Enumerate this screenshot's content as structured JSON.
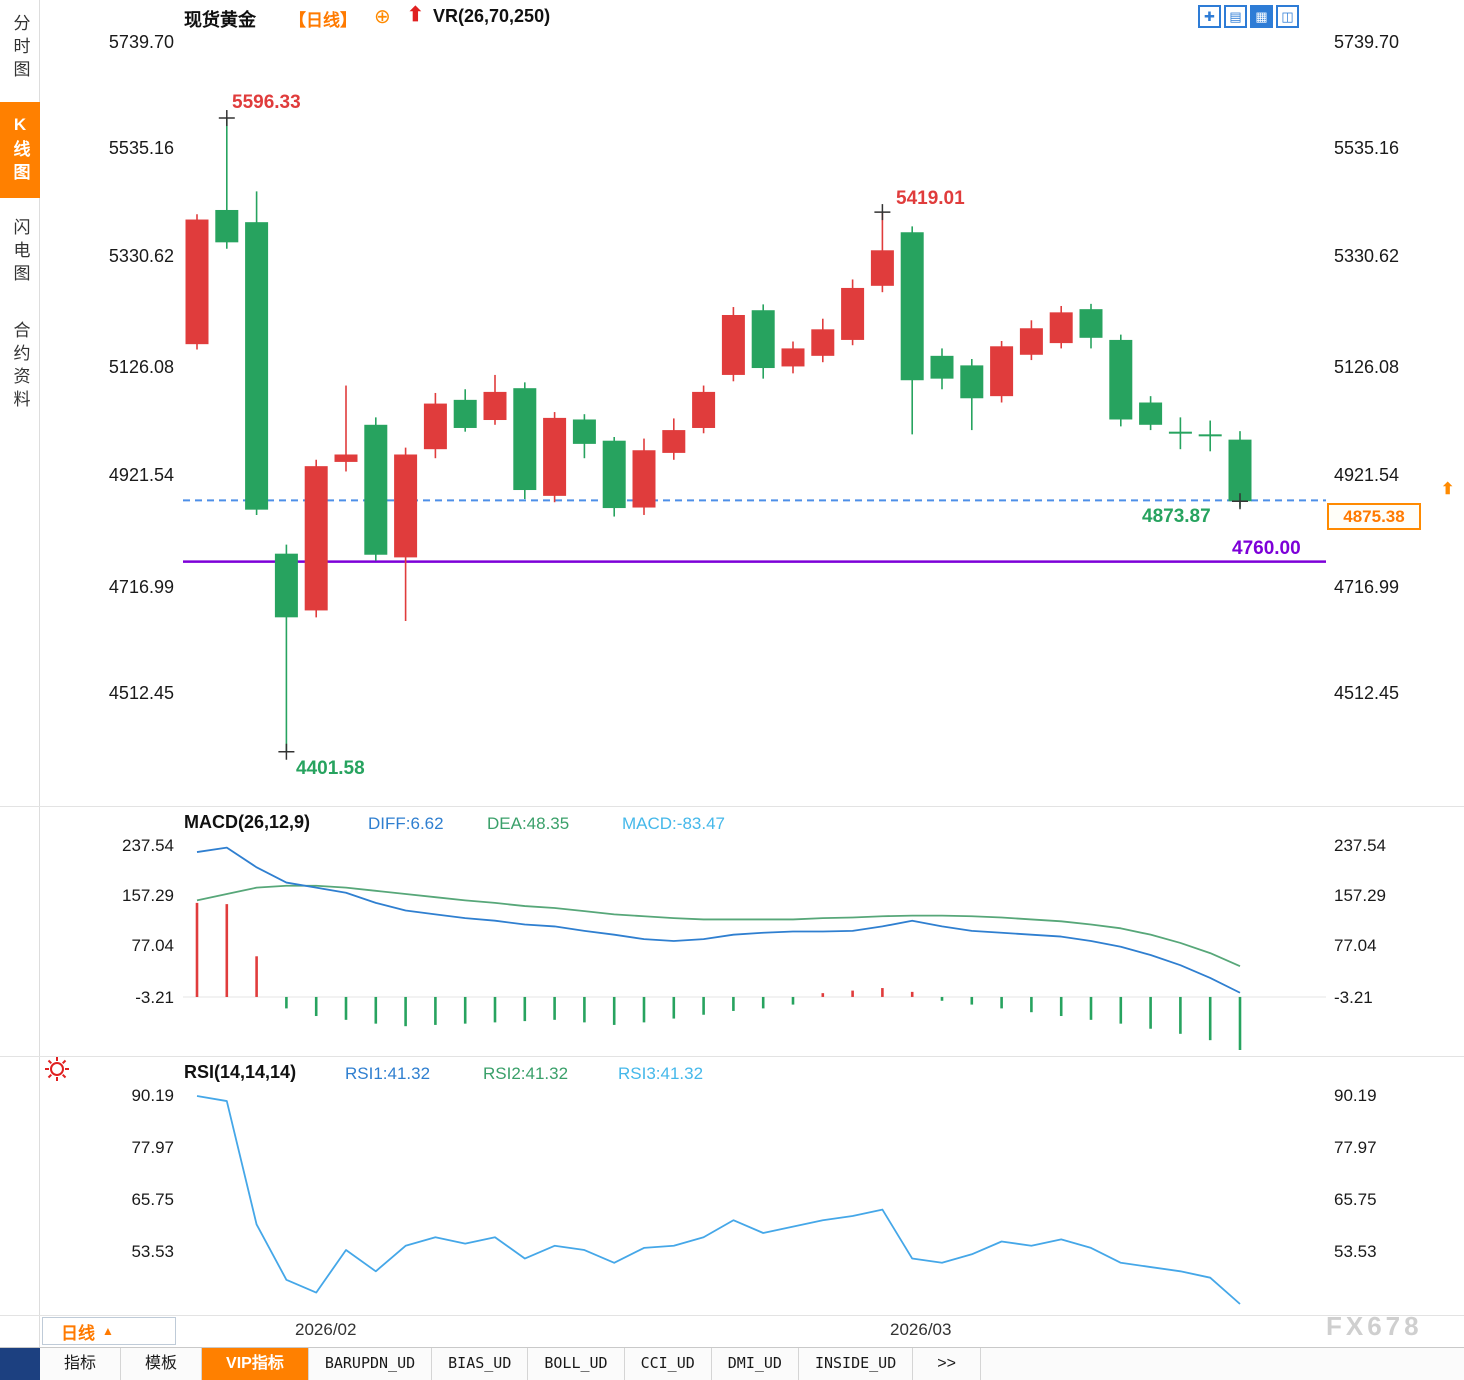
{
  "header": {
    "symbol": "现货黄金",
    "period_tag": "【日线】",
    "indicator": "VR(26,70,250)"
  },
  "icons": {
    "target": "⊕",
    "signal_arrow": "⬆",
    "pan": "✚",
    "layout_grid": "▤",
    "layout_chart": "▦",
    "layout_split": "◫",
    "period_arrow": "▲",
    "latest_arrow": "⬆"
  },
  "sidebar": {
    "items": [
      "分时图",
      "K线图",
      "闪电图",
      "合约资料"
    ]
  },
  "axes": {
    "kline": [
      "5739.70",
      "5535.16",
      "5330.62",
      "5126.08",
      "4921.54",
      "4716.99",
      "4512.45"
    ],
    "macd": [
      "237.54",
      "157.29",
      "77.04",
      "-3.21"
    ],
    "rsi": [
      "90.19",
      "77.97",
      "65.75",
      "53.53"
    ]
  },
  "macd_header": {
    "title": "MACD(26,12,9)",
    "diff": "DIFF:6.62",
    "dea": "DEA:48.35",
    "macd": "MACD:-83.47"
  },
  "rsi_header": {
    "title": "RSI(14,14,14)",
    "r1": "RSI1:41.32",
    "r2": "RSI2:41.32",
    "r3": "RSI3:41.32"
  },
  "annotations": {
    "high": "5596.33",
    "peak": "5419.01",
    "low": "4401.58",
    "last_close": "4873.87",
    "support": "4760.00",
    "price_box": "4875.38"
  },
  "bottom": {
    "period": "日线",
    "dates": [
      "2026/02",
      "2026/03"
    ]
  },
  "bottom_tabs": [
    "指标",
    "模板",
    "VIP指标",
    "BARUPDN_UD",
    "BIAS_UD",
    "BOLL_UD",
    "CCI_UD",
    "DMI_UD",
    "INSIDE_UD",
    ">>"
  ],
  "watermark": "FX678",
  "colors": {
    "up": "#e03c3c",
    "down": "#27a35f",
    "diff_line": "#2f7fd0",
    "dea_line": "#57a779",
    "rsi_line": "#45a7e8",
    "dashed_ref": "#4d8fe8",
    "purple_ref": "#7d00d8",
    "accent": "#ff8000",
    "cursor": "#333333"
  },
  "chart_data": {
    "type": "candlestick",
    "symbol": "现货黄金",
    "period": "日线",
    "kline": {
      "axis_ticks": [
        5739.7,
        5535.16,
        5330.62,
        5126.08,
        4921.54,
        4716.99,
        4512.45
      ],
      "candles": [
        [
          5170,
          5415,
          5160,
          5405
        ],
        [
          5423,
          5596.33,
          5350,
          5362
        ],
        [
          5400,
          5458,
          4848,
          4858
        ],
        [
          4775,
          4792,
          4401.58,
          4655
        ],
        [
          4668,
          4952,
          4655,
          4940
        ],
        [
          4948,
          5092,
          4930,
          4962
        ],
        [
          5018,
          5032,
          4762,
          4773
        ],
        [
          4768,
          4975,
          4648,
          4962
        ],
        [
          4972,
          5078,
          4955,
          5058
        ],
        [
          5065,
          5085,
          5005,
          5012
        ],
        [
          5027,
          5112,
          5018,
          5080
        ],
        [
          5087,
          5098,
          4878,
          4895
        ],
        [
          4884,
          5042,
          4872,
          5031
        ],
        [
          5028,
          5038,
          4955,
          4982
        ],
        [
          4988,
          4995,
          4845,
          4861
        ],
        [
          4862,
          4992,
          4848,
          4970
        ],
        [
          4965,
          5030,
          4952,
          5008
        ],
        [
          5012,
          5092,
          5002,
          5080
        ],
        [
          5112,
          5240,
          5100,
          5225
        ],
        [
          5234,
          5245,
          5105,
          5125
        ],
        [
          5128,
          5175,
          5115,
          5162
        ],
        [
          5148,
          5218,
          5136,
          5198
        ],
        [
          5178,
          5292,
          5168,
          5276
        ],
        [
          5280,
          5419.01,
          5268,
          5347
        ],
        [
          5381,
          5392,
          5000,
          5102
        ],
        [
          5148,
          5162,
          5085,
          5105
        ],
        [
          5130,
          5142,
          5008,
          5068
        ],
        [
          5072,
          5176,
          5060,
          5166
        ],
        [
          5150,
          5215,
          5140,
          5200
        ],
        [
          5172,
          5242,
          5162,
          5230
        ],
        [
          5236,
          5246,
          5162,
          5182
        ],
        [
          5178,
          5188,
          5015,
          5028
        ],
        [
          5060,
          5072,
          5008,
          5018
        ],
        [
          5005,
          5032,
          4972,
          5002
        ],
        [
          5000,
          5026,
          4968,
          4997
        ],
        [
          4990,
          5006,
          4862,
          4873.87
        ]
      ],
      "ref_dashed": 4875.38,
      "ref_purple": 4760.0,
      "cursor_marks": [
        {
          "i": 1,
          "price": 5596.33
        },
        {
          "i": 3,
          "price": 4401.58
        },
        {
          "i": 23,
          "price": 5419.01
        },
        {
          "i": 35,
          "price": 4873.87
        }
      ],
      "x_labels": [
        {
          "label": "2026/02",
          "i": 5
        },
        {
          "label": "2026/03",
          "i": 25
        }
      ]
    },
    "macd": {
      "params": [
        26,
        12,
        9
      ],
      "axis_ticks": [
        237.54,
        157.29,
        77.04,
        -3.21
      ],
      "current": {
        "diff": 6.62,
        "dea": 48.35,
        "macd": -83.47
      },
      "diff": [
        228,
        235,
        204,
        180,
        172,
        164,
        148,
        136,
        130,
        124,
        120,
        114,
        111,
        104,
        98,
        91,
        88,
        91,
        98,
        101,
        103,
        103,
        104,
        111,
        120,
        111,
        104,
        101,
        98,
        95,
        88,
        79,
        66,
        50,
        30,
        6.62
      ],
      "dea": [
        152,
        162,
        172,
        175,
        175,
        172,
        167,
        162,
        157,
        152,
        148,
        143,
        140,
        135,
        130,
        127,
        124,
        122,
        122,
        122,
        122,
        124,
        125,
        127,
        128,
        128,
        127,
        125,
        122,
        119,
        114,
        108,
        98,
        85,
        69,
        48.35
      ],
      "hist": [
        148,
        146,
        64,
        -18,
        -30,
        -36,
        -42,
        -46,
        -44,
        -42,
        -40,
        -38,
        -36,
        -40,
        -44,
        -40,
        -34,
        -28,
        -22,
        -18,
        -12,
        6,
        10,
        14,
        8,
        -6,
        -12,
        -18,
        -24,
        -30,
        -36,
        -42,
        -50,
        -58,
        -68,
        -83.47
      ]
    },
    "rsi": {
      "params": [
        14,
        14,
        14
      ],
      "axis_ticks": [
        90.19,
        77.97,
        65.75,
        53.53
      ],
      "current": {
        "rsi1": 41.32,
        "rsi2": 41.32,
        "rsi3": 41.32
      },
      "values": [
        90.19,
        89,
        60,
        47,
        44,
        54,
        49,
        55,
        57,
        55.5,
        57,
        52,
        55,
        54,
        51,
        54.5,
        55,
        57,
        61,
        58,
        59.5,
        61,
        62,
        63.5,
        52,
        51,
        53,
        56,
        55,
        56.5,
        54.5,
        51,
        50,
        49,
        47.5,
        41.32
      ]
    }
  }
}
